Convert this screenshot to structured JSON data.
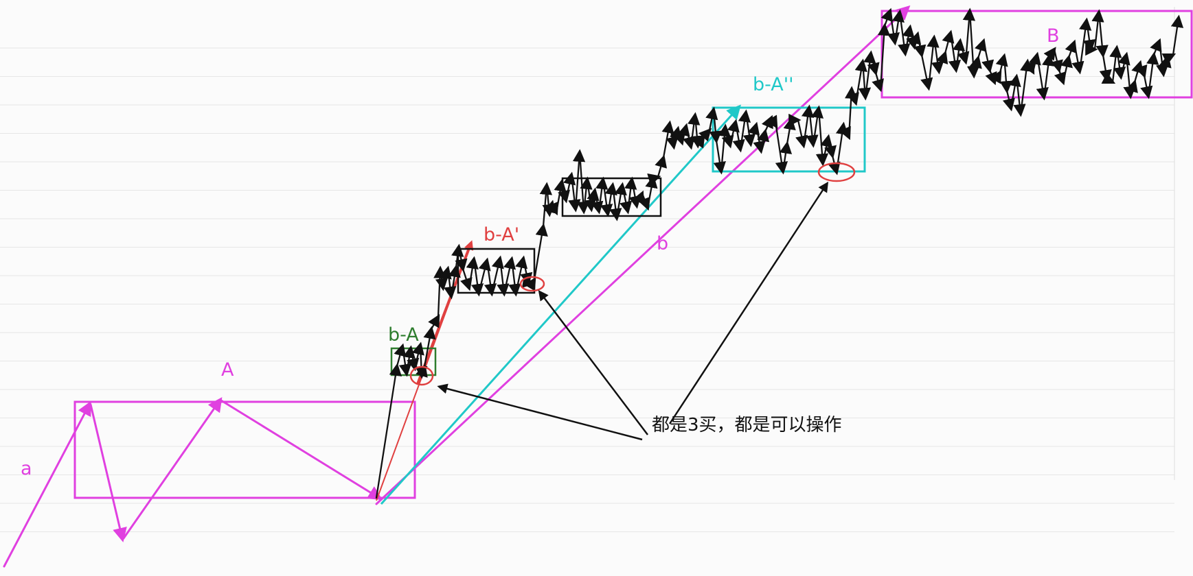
{
  "labels": {
    "a": "a",
    "A": "A",
    "b_A": "b-A",
    "b_A_prime": "b-A'",
    "b_A_double_prime": "b-A''",
    "b": "b",
    "B": "B"
  },
  "annotation": "都是3买，都是可以操作",
  "colors": {
    "magenta": "#e040e0",
    "green": "#2e7d2e",
    "red": "#e04040",
    "cyan": "#20c8c8",
    "black": "#111111",
    "grid": "#e6e6e6"
  }
}
